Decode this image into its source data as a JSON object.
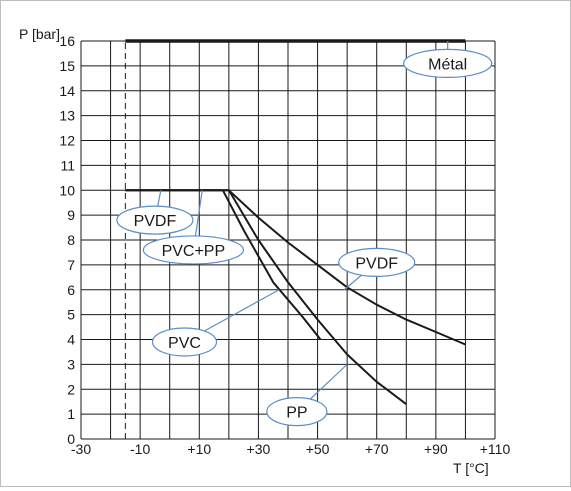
{
  "chart_data": {
    "type": "line",
    "ylabel": "P [bar]",
    "xlabel": "T [°C]",
    "xlim": [
      -30,
      110
    ],
    "ylim": [
      0,
      16
    ],
    "grid": true,
    "x_ticks": [
      "-30",
      "-10",
      "+10",
      "+30",
      "+50",
      "+70",
      "+90",
      "+110"
    ],
    "y_ticks": [
      "0",
      "1",
      "2",
      "3",
      "4",
      "5",
      "6",
      "7",
      "8",
      "9",
      "10",
      "11",
      "12",
      "13",
      "14",
      "15",
      "16"
    ],
    "reference_line_x": -15,
    "colors": {
      "grid": "#1a1a1a",
      "curve": "#1a1a1a",
      "callout": "#5b8ec7"
    },
    "series": [
      {
        "name": "Métal",
        "x": [
          -15,
          100
        ],
        "y": [
          16,
          16
        ]
      },
      {
        "name": "PVDF",
        "x": [
          -15,
          20,
          30,
          40,
          50,
          60,
          70,
          80,
          90,
          100
        ],
        "y": [
          10,
          10,
          8.9,
          7.9,
          7.0,
          6.1,
          5.4,
          4.8,
          4.3,
          3.8
        ]
      },
      {
        "name": "PVC",
        "x": [
          -15,
          18,
          25,
          35,
          45,
          51
        ],
        "y": [
          10,
          10,
          8.4,
          6.3,
          4.9,
          4.0
        ]
      },
      {
        "name": "PP",
        "x": [
          -15,
          20,
          30,
          40,
          50,
          60,
          70,
          80
        ],
        "y": [
          10,
          10,
          8.0,
          6.3,
          4.8,
          3.4,
          2.3,
          1.4
        ]
      }
    ],
    "annotations": [
      {
        "label": "Métal",
        "x": 94,
        "y": 15.1,
        "target_x": 94,
        "target_y": 16
      },
      {
        "label": "PVDF",
        "x": -5,
        "y": 8.8,
        "target_x": -3,
        "target_y": 10
      },
      {
        "label": "PVC+PP",
        "x": 8,
        "y": 7.6,
        "target_x": 11,
        "target_y": 10
      },
      {
        "label": "PVDF",
        "x": 70,
        "y": 7.1,
        "target_x": 59,
        "target_y": 6.0
      },
      {
        "label": "PVC",
        "x": 5,
        "y": 3.9,
        "target_x": 37,
        "target_y": 6.0
      },
      {
        "label": "PP",
        "x": 43,
        "y": 1.1,
        "target_x": 60,
        "target_y": 3.0
      }
    ]
  }
}
